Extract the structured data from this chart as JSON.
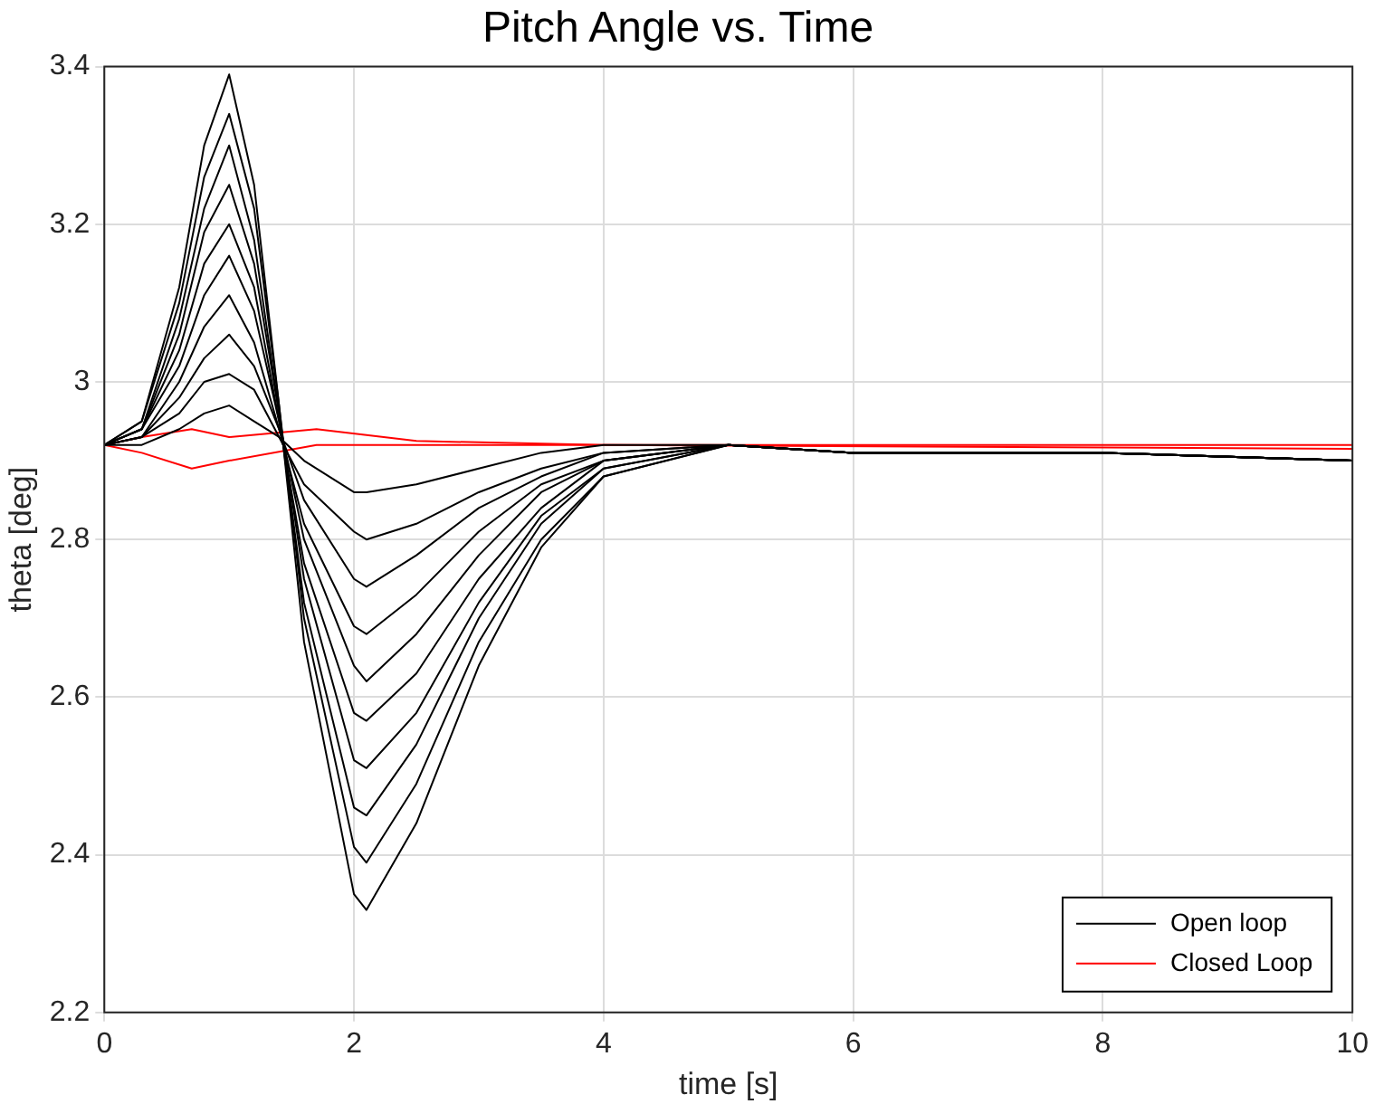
{
  "chart_data": {
    "type": "line",
    "title": "Pitch Angle vs. Time",
    "xlabel": "time [s]",
    "ylabel": "theta [deg]",
    "xlim": [
      0,
      10
    ],
    "xticks": [
      0,
      2,
      4,
      6,
      8,
      10
    ],
    "ylim": [
      2.2,
      3.4
    ],
    "yticks": [
      2.2,
      2.4,
      2.6,
      2.8,
      3,
      3.2,
      3.4
    ],
    "grid": true,
    "legend": "bottom right",
    "marker": "none",
    "line_style": "solid",
    "series": [
      {
        "name": "Open loop",
        "color": "#000000",
        "x": [
          0,
          0.3,
          0.6,
          0.8,
          1,
          1.2,
          1.4,
          1.6,
          2,
          2.1,
          2.5,
          3,
          3.5,
          4,
          5,
          6,
          8,
          10
        ],
        "values": [
          2.92,
          2.95,
          3.12,
          3.3,
          3.39,
          3.25,
          2.97,
          2.67,
          2.35,
          2.33,
          2.44,
          2.64,
          2.79,
          2.88,
          2.92,
          2.91,
          2.91,
          2.9
        ]
      },
      {
        "color": "#000000",
        "x": [
          0,
          0.3,
          0.6,
          0.8,
          1,
          1.2,
          1.4,
          1.6,
          2,
          2.1,
          2.5,
          3,
          3.5,
          4,
          5,
          6,
          8,
          10
        ],
        "values": [
          2.92,
          2.95,
          3.1,
          3.26,
          3.34,
          3.22,
          2.97,
          2.7,
          2.41,
          2.39,
          2.49,
          2.67,
          2.8,
          2.88,
          2.92,
          2.91,
          2.91,
          2.9
        ]
      },
      {
        "color": "#000000",
        "x": [
          0,
          0.3,
          0.6,
          0.8,
          1,
          1.2,
          1.4,
          1.6,
          2,
          2.1,
          2.5,
          3,
          3.5,
          4,
          5,
          6,
          8,
          10
        ],
        "values": [
          2.92,
          2.94,
          3.08,
          3.22,
          3.3,
          3.18,
          2.96,
          2.72,
          2.46,
          2.45,
          2.54,
          2.7,
          2.82,
          2.89,
          2.92,
          2.91,
          2.91,
          2.9
        ]
      },
      {
        "color": "#000000",
        "x": [
          0,
          0.3,
          0.6,
          0.8,
          1,
          1.2,
          1.4,
          1.6,
          2,
          2.1,
          2.5,
          3,
          3.5,
          4,
          5,
          6,
          8,
          10
        ],
        "values": [
          2.92,
          2.94,
          3.06,
          3.19,
          3.25,
          3.15,
          2.96,
          2.75,
          2.52,
          2.51,
          2.58,
          2.72,
          2.83,
          2.89,
          2.92,
          2.91,
          2.91,
          2.9
        ]
      },
      {
        "color": "#000000",
        "x": [
          0,
          0.3,
          0.6,
          0.8,
          1,
          1.2,
          1.4,
          1.6,
          2,
          2.1,
          2.5,
          3,
          3.5,
          4,
          5,
          6,
          8,
          10
        ],
        "values": [
          2.92,
          2.94,
          3.04,
          3.15,
          3.2,
          3.12,
          2.95,
          2.77,
          2.58,
          2.57,
          2.63,
          2.75,
          2.84,
          2.9,
          2.92,
          2.91,
          2.91,
          2.9
        ]
      },
      {
        "color": "#000000",
        "x": [
          0,
          0.3,
          0.6,
          0.8,
          1,
          1.2,
          1.4,
          1.6,
          2,
          2.1,
          2.5,
          3,
          3.5,
          4,
          5,
          6,
          8,
          10
        ],
        "values": [
          2.92,
          2.94,
          3.02,
          3.11,
          3.16,
          3.09,
          2.95,
          2.8,
          2.64,
          2.62,
          2.68,
          2.78,
          2.86,
          2.9,
          2.92,
          2.91,
          2.91,
          2.9
        ]
      },
      {
        "color": "#000000",
        "x": [
          0,
          0.3,
          0.6,
          0.8,
          1,
          1.2,
          1.4,
          1.6,
          2,
          2.1,
          2.5,
          3,
          3.5,
          4,
          5,
          6,
          8,
          10
        ],
        "values": [
          2.92,
          2.93,
          3,
          3.07,
          3.11,
          3.05,
          2.94,
          2.82,
          2.69,
          2.68,
          2.73,
          2.81,
          2.87,
          2.9,
          2.92,
          2.91,
          2.91,
          2.9
        ]
      },
      {
        "color": "#000000",
        "x": [
          0,
          0.3,
          0.6,
          0.8,
          1,
          1.2,
          1.4,
          1.6,
          2,
          2.1,
          2.5,
          3,
          3.5,
          4,
          5,
          6,
          8,
          10
        ],
        "values": [
          2.92,
          2.93,
          2.98,
          3.03,
          3.06,
          3.02,
          2.94,
          2.85,
          2.75,
          2.74,
          2.78,
          2.84,
          2.88,
          2.91,
          2.92,
          2.91,
          2.91,
          2.9
        ]
      },
      {
        "color": "#000000",
        "x": [
          0,
          0.3,
          0.6,
          0.8,
          1,
          1.2,
          1.4,
          1.6,
          2,
          2.1,
          2.5,
          3,
          3.5,
          4,
          5,
          6,
          8,
          10
        ],
        "values": [
          2.92,
          2.93,
          2.96,
          3,
          3.01,
          2.99,
          2.93,
          2.87,
          2.81,
          2.8,
          2.82,
          2.86,
          2.89,
          2.91,
          2.92,
          2.91,
          2.91,
          2.9
        ]
      },
      {
        "color": "#000000",
        "x": [
          0,
          0.3,
          0.6,
          0.8,
          1,
          1.2,
          1.4,
          1.6,
          2,
          2.1,
          2.5,
          3,
          3.5,
          4,
          5,
          6,
          8,
          10
        ],
        "values": [
          2.92,
          2.92,
          2.94,
          2.96,
          2.97,
          2.95,
          2.93,
          2.9,
          2.86,
          2.86,
          2.87,
          2.89,
          2.91,
          2.92,
          2.92,
          2.91,
          2.91,
          2.9
        ]
      },
      {
        "name": "Closed Loop",
        "color": "#ff0000",
        "x": [
          0,
          0.3,
          0.7,
          1,
          1.7,
          2.5,
          4,
          10
        ],
        "values": [
          2.92,
          2.93,
          2.94,
          2.93,
          2.94,
          2.925,
          2.92,
          2.92
        ]
      },
      {
        "color": "#ff0000",
        "x": [
          0,
          0.3,
          0.7,
          1,
          1.7,
          2.5,
          4,
          10
        ],
        "values": [
          2.92,
          2.91,
          2.89,
          2.9,
          2.92,
          2.92,
          2.92,
          2.915
        ]
      }
    ]
  }
}
